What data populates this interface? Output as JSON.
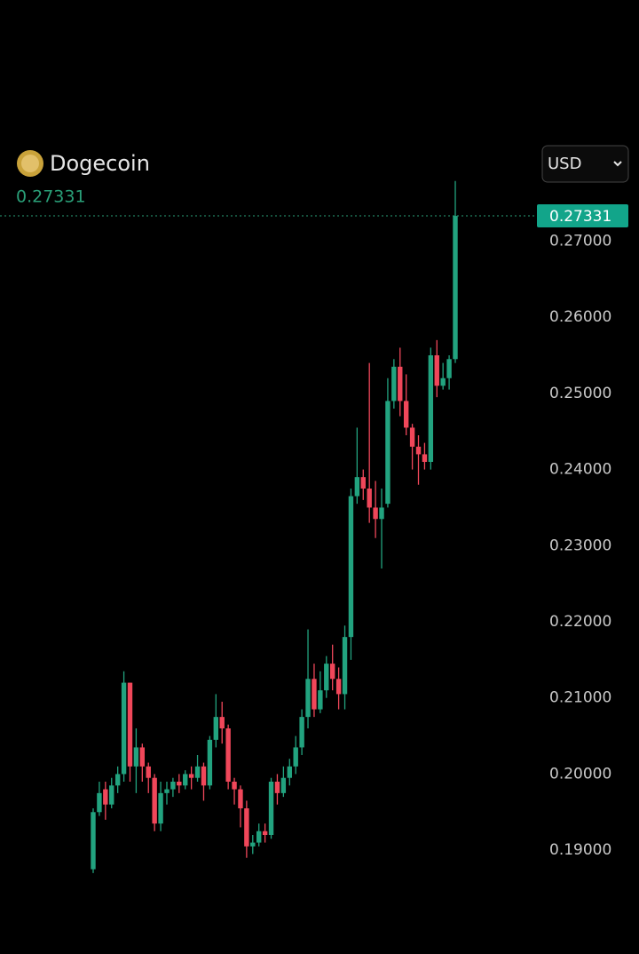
{
  "chart_data": {
    "type": "candlestick",
    "title": "Dogecoin",
    "last_price": 0.27331,
    "currency": "USD",
    "up_color": "#22a37f",
    "down_color": "#f0475a",
    "ylim": [
      0.185,
      0.283
    ],
    "yticks": [
      {
        "value": 0.19,
        "label": "0.19000"
      },
      {
        "value": 0.2,
        "label": "0.20000"
      },
      {
        "value": 0.21,
        "label": "0.21000"
      },
      {
        "value": 0.22,
        "label": "0.22000"
      },
      {
        "value": 0.23,
        "label": "0.23000"
      },
      {
        "value": 0.24,
        "label": "0.24000"
      },
      {
        "value": 0.25,
        "label": "0.25000"
      },
      {
        "value": 0.26,
        "label": "0.26000"
      },
      {
        "value": 0.27,
        "label": "0.27000"
      }
    ],
    "open": [
      0.1875,
      0.195,
      0.198,
      0.196,
      0.1985,
      0.2,
      0.212,
      0.201,
      0.2035,
      0.201,
      0.1995,
      0.1935,
      0.1975,
      0.198,
      0.199,
      0.1985,
      0.2,
      0.1995,
      0.201,
      0.1985,
      0.2045,
      0.2075,
      0.206,
      0.199,
      0.198,
      0.1955,
      0.1905,
      0.191,
      0.1925,
      0.192,
      0.199,
      0.1975,
      0.1995,
      0.201,
      0.2035,
      0.2075,
      0.2125,
      0.2085,
      0.211,
      0.2145,
      0.2125,
      0.2105,
      0.218,
      0.2365,
      0.239,
      0.2375,
      0.235,
      0.2335,
      0.2355,
      0.249,
      0.2535,
      0.249,
      0.2455,
      0.243,
      0.242,
      0.241,
      0.255,
      0.251,
      0.252,
      0.2545
    ],
    "high": [
      0.1955,
      0.199,
      0.199,
      0.1995,
      0.201,
      0.2135,
      0.212,
      0.206,
      0.204,
      0.2015,
      0.2,
      0.199,
      0.199,
      0.1995,
      0.2,
      0.2005,
      0.201,
      0.2025,
      0.2015,
      0.205,
      0.2105,
      0.2095,
      0.2065,
      0.1995,
      0.1985,
      0.1965,
      0.192,
      0.1935,
      0.1935,
      0.1995,
      0.2,
      0.201,
      0.202,
      0.205,
      0.2085,
      0.219,
      0.2145,
      0.2135,
      0.2155,
      0.217,
      0.214,
      0.2195,
      0.2375,
      0.2455,
      0.24,
      0.254,
      0.2385,
      0.2375,
      0.252,
      0.2545,
      0.256,
      0.2525,
      0.246,
      0.2445,
      0.2435,
      0.256,
      0.257,
      0.254,
      0.255,
      0.2779
    ],
    "low": [
      0.187,
      0.1945,
      0.194,
      0.1955,
      0.1975,
      0.199,
      0.199,
      0.1975,
      0.199,
      0.1975,
      0.1925,
      0.1925,
      0.196,
      0.197,
      0.1975,
      0.198,
      0.198,
      0.199,
      0.1965,
      0.198,
      0.2035,
      0.204,
      0.198,
      0.196,
      0.193,
      0.189,
      0.1895,
      0.1905,
      0.191,
      0.1915,
      0.196,
      0.197,
      0.1985,
      0.2,
      0.2025,
      0.206,
      0.2075,
      0.208,
      0.21,
      0.211,
      0.2085,
      0.2085,
      0.215,
      0.2355,
      0.236,
      0.233,
      0.231,
      0.227,
      0.235,
      0.248,
      0.247,
      0.2445,
      0.24,
      0.238,
      0.24,
      0.24,
      0.2495,
      0.2505,
      0.2505,
      0.254
    ],
    "close": [
      0.195,
      0.1975,
      0.196,
      0.1985,
      0.2,
      0.212,
      0.201,
      0.2035,
      0.201,
      0.1995,
      0.1935,
      0.1975,
      0.198,
      0.199,
      0.1985,
      0.2,
      0.1995,
      0.201,
      0.1985,
      0.2045,
      0.2075,
      0.206,
      0.199,
      0.198,
      0.1955,
      0.1905,
      0.191,
      0.1925,
      0.192,
      0.199,
      0.1975,
      0.1995,
      0.201,
      0.2035,
      0.2075,
      0.2125,
      0.2085,
      0.211,
      0.2145,
      0.2125,
      0.2105,
      0.218,
      0.2365,
      0.239,
      0.2375,
      0.235,
      0.2335,
      0.235,
      0.249,
      0.2535,
      0.249,
      0.2455,
      0.243,
      0.242,
      0.241,
      0.255,
      0.251,
      0.252,
      0.2545,
      0.27331
    ]
  }
}
